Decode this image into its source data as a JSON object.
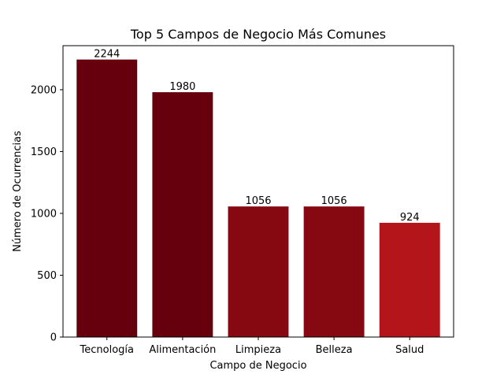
{
  "chart_data": {
    "type": "bar",
    "title": "Top 5 Campos de Negocio Más Comunes",
    "xlabel": "Campo de Negocio",
    "ylabel": "Número de Ocurrencias",
    "categories": [
      "Tecnología",
      "Alimentación",
      "Limpieza",
      "Belleza",
      "Salud"
    ],
    "values": [
      2244,
      1980,
      1056,
      1056,
      924
    ],
    "bar_colors": [
      "#67000d",
      "#67000d",
      "#860811",
      "#860811",
      "#b3151b"
    ],
    "yticks": [
      0,
      500,
      1000,
      1500,
      2000
    ],
    "ylim": [
      0,
      2356.2
    ],
    "grid": false,
    "legend": false,
    "data_labels": true
  }
}
